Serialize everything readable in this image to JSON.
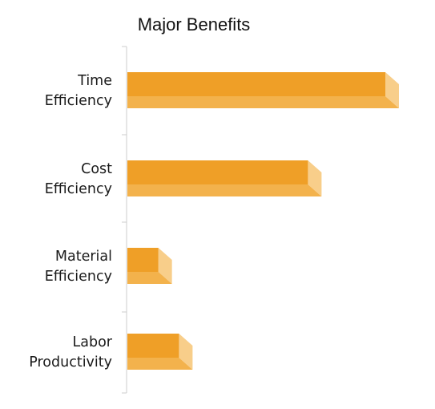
{
  "chart_data": {
    "type": "bar",
    "orientation": "horizontal",
    "title": "Major Benefits",
    "xlabel": "",
    "ylabel": "",
    "categories": [
      [
        "Time",
        "Efficiency"
      ],
      [
        "Cost",
        "Efficiency"
      ],
      [
        "Material",
        "Efficiency"
      ],
      [
        "Labor",
        "Productivity"
      ]
    ],
    "values": [
      100,
      70,
      12,
      20
    ],
    "xlim": [
      0,
      100
    ],
    "grid": false,
    "legend": "none",
    "axis_ticks_visible": false,
    "bar_style": "3d",
    "colors": {
      "bar_front": "#EF9F27",
      "bar_bottom": "#F3B24C",
      "bar_side": "#F8CE8A",
      "axis": "#cccccc"
    }
  }
}
